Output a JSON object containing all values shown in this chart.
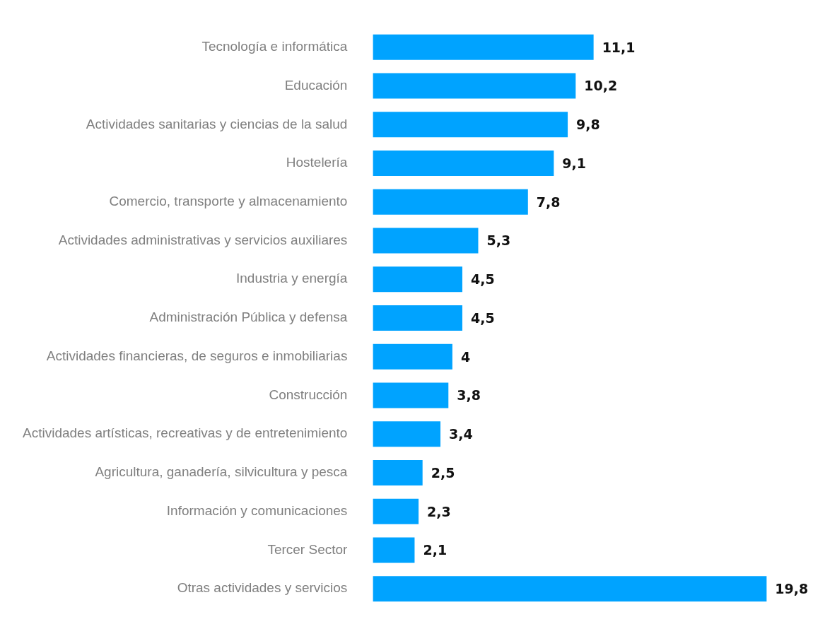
{
  "chart_data": {
    "type": "bar",
    "orientation": "horizontal",
    "categories": [
      "Tecnología e informática",
      "Educación",
      "Actividades sanitarias y ciencias de la salud",
      "Hostelería",
      "Comercio, transporte y almacenamiento",
      "Actividades administrativas y servicios auxiliares",
      "Industria y energía",
      "Administración Pública y defensa",
      "Actividades financieras, de seguros e inmobiliarias",
      "Construcción",
      "Actividades artísticas, recreativas y de entretenimiento",
      "Agricultura, ganadería, silvicultura y pesca",
      "Información y comunicaciones",
      "Tercer Sector",
      "Otras actividades y servicios"
    ],
    "values": [
      11.1,
      10.2,
      9.8,
      9.1,
      7.8,
      5.3,
      4.5,
      4.5,
      4,
      3.8,
      3.4,
      2.5,
      2.3,
      2.1,
      19.8
    ],
    "value_labels": [
      "11,1",
      "10,2",
      "9,8",
      "9,1",
      "7,8",
      "5,3",
      "4,5",
      "4,5",
      "4",
      "3,8",
      "3,4",
      "2,5",
      "2,3",
      "2,1",
      "19,8"
    ],
    "color": "#00a3ff",
    "legend": false
  }
}
